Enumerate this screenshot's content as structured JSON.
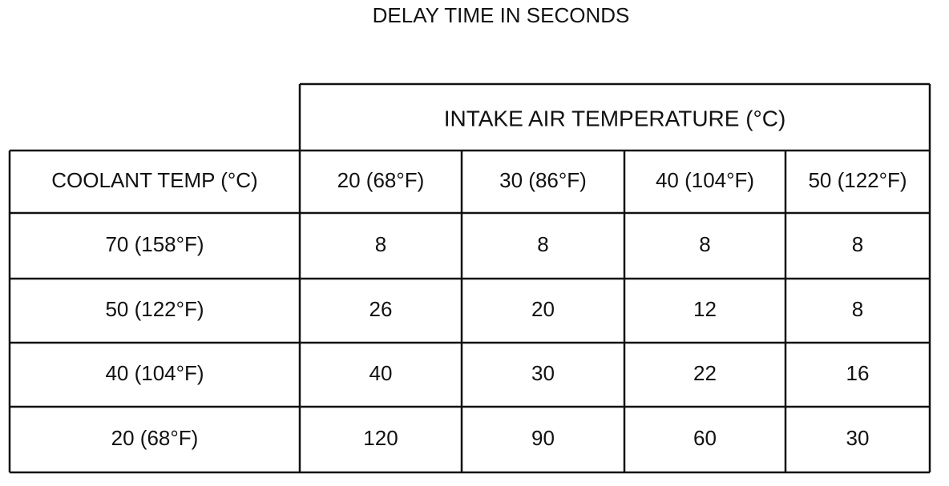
{
  "title": "DELAY TIME IN SECONDS",
  "table": {
    "group_header": "INTAKE AIR TEMPERATURE (°C)",
    "header": [
      "COOLANT TEMP (°C)",
      "20 (68°F)",
      "30 (86°F)",
      "40 (104°F)",
      "50 (122°F)"
    ],
    "rows": [
      {
        "label": "70 (158°F)",
        "values": [
          8,
          8,
          8,
          8
        ]
      },
      {
        "label": "50 (122°F)",
        "values": [
          26,
          20,
          12,
          8
        ]
      },
      {
        "label": "40 (104°F)",
        "values": [
          40,
          30,
          22,
          16
        ]
      },
      {
        "label": "20 (68°F)",
        "values": [
          120,
          90,
          60,
          30
        ]
      }
    ]
  }
}
